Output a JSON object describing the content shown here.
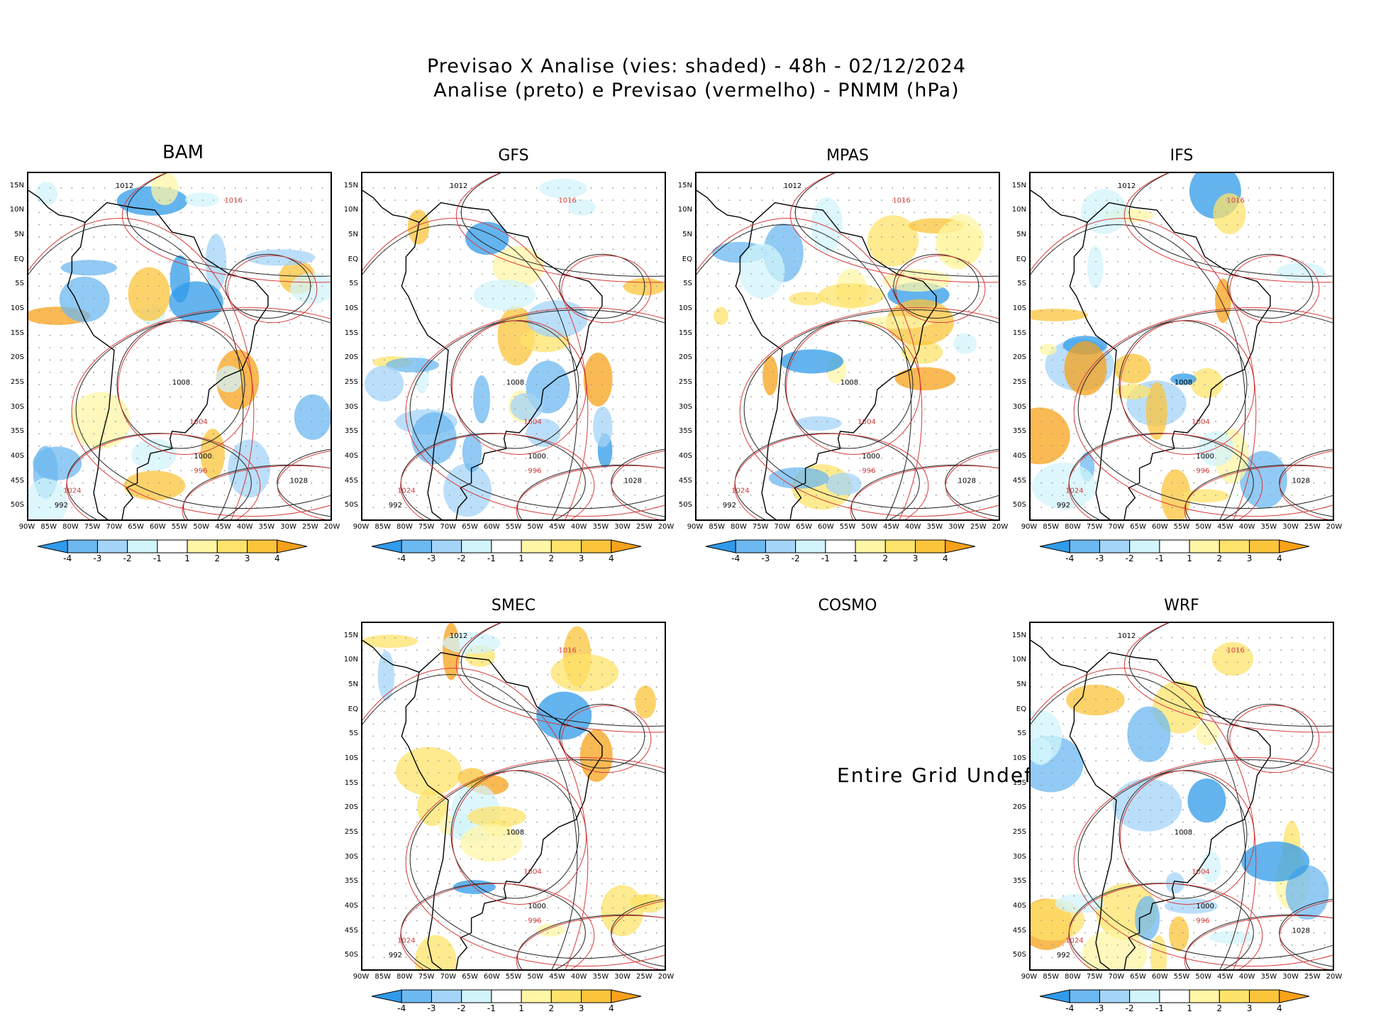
{
  "title": {
    "line1": "Previsao X Analise (vies: shaded) - 48h - 02/12/2024",
    "line2": "Analise (preto) e Previsao (vermelho) - PNMM (hPa)"
  },
  "axes": {
    "lat_labels": [
      "15N",
      "10N",
      "5N",
      "EQ",
      "5S",
      "10S",
      "15S",
      "20S",
      "25S",
      "30S",
      "35S",
      "40S",
      "45S",
      "50S"
    ],
    "lon_labels": [
      "90W",
      "85W",
      "80W",
      "75W",
      "70W",
      "65W",
      "60W",
      "55W",
      "50W",
      "45W",
      "40W",
      "35W",
      "30W",
      "25W",
      "20W"
    ]
  },
  "colorbar": {
    "labels": [
      "-4",
      "-3",
      "-2",
      "-1",
      "1",
      "2",
      "3",
      "4"
    ],
    "colors": [
      "#2f9bea",
      "#6cb8f0",
      "#a4d4f8",
      "#d2f4fb",
      "#ffffff",
      "#fff6a6",
      "#fde36a",
      "#fbc43a",
      "#f7a21a"
    ]
  },
  "panels": [
    {
      "id": "bam",
      "title": "BAM",
      "has_data": true,
      "isobar_labels": [
        "1012",
        "1016",
        "1008",
        "1004",
        "1000",
        "996",
        "992",
        "1024",
        "1028"
      ]
    },
    {
      "id": "gfs",
      "title": "GFS",
      "has_data": true,
      "isobar_labels": [
        "1012",
        "1016",
        "1008",
        "1004",
        "1000",
        "996",
        "992",
        "1024",
        "1028"
      ]
    },
    {
      "id": "mpas",
      "title": "MPAS",
      "has_data": true,
      "isobar_labels": [
        "1012",
        "1016",
        "1008",
        "1004",
        "1000",
        "996",
        "992",
        "1024",
        "1028"
      ]
    },
    {
      "id": "ifs",
      "title": "IFS",
      "has_data": true,
      "isobar_labels": [
        "1012",
        "1016",
        "1008",
        "1004",
        "1000",
        "996",
        "992",
        "1024",
        "1028"
      ]
    },
    {
      "id": "smec",
      "title": "SMEC",
      "has_data": true,
      "isobar_labels": [
        "1012",
        "1016",
        "1008",
        "1004",
        "1000",
        "996",
        "992",
        "1024"
      ]
    },
    {
      "id": "cosmo",
      "title": "COSMO",
      "has_data": false,
      "message": "Entire Grid Undef"
    },
    {
      "id": "wrf",
      "title": "WRF",
      "has_data": true,
      "isobar_labels": [
        "1012",
        "1016",
        "1008",
        "1004",
        "1000",
        "996",
        "992",
        "1024",
        "1028"
      ]
    }
  ]
}
